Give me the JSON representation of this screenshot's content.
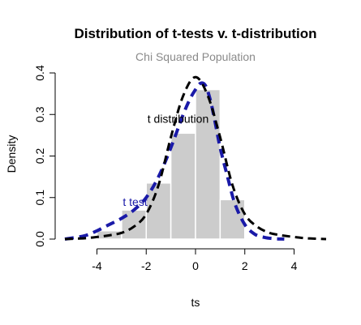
{
  "chart_data": {
    "type": "histogram",
    "title": "Distribution of t-tests v. t-distribution",
    "subtitle": "Chi Squared Population",
    "xlabel": "ts",
    "ylabel": "Density",
    "xlim": [
      -5.3,
      5.3
    ],
    "ylim": [
      0,
      0.4
    ],
    "x_ticks": [
      -4,
      -2,
      0,
      2,
      4
    ],
    "y_ticks": [
      0.0,
      0.1,
      0.2,
      0.3,
      0.4
    ],
    "y_tick_labels": [
      "0.0",
      "0.1",
      "0.2",
      "0.3",
      "0.4"
    ],
    "bars": [
      {
        "x0": -5,
        "x1": -4,
        "value": 0.003
      },
      {
        "x0": -4,
        "x1": -3,
        "value": 0.02
      },
      {
        "x0": -3,
        "x1": -2,
        "value": 0.07
      },
      {
        "x0": -2,
        "x1": -1,
        "value": 0.135
      },
      {
        "x0": -1,
        "x1": 0,
        "value": 0.255
      },
      {
        "x0": 0,
        "x1": 1,
        "value": 0.36
      },
      {
        "x0": 1,
        "x1": 2,
        "value": 0.095
      },
      {
        "x0": 2,
        "x1": 3,
        "value": 0.003
      }
    ],
    "bar_color": "#cccccc",
    "series": [
      {
        "name": "t test",
        "style": "dashed",
        "color": "#1a1aa8",
        "x": [
          -5.3,
          -4.5,
          -4.0,
          -3.5,
          -3.0,
          -2.5,
          -2.0,
          -1.5,
          -1.0,
          -0.5,
          -0.2,
          0.0,
          0.2,
          0.4,
          0.6,
          0.8,
          1.0,
          1.3,
          1.6,
          2.0,
          2.4,
          2.8,
          3.2,
          3.6
        ],
        "y": [
          0.0,
          0.008,
          0.02,
          0.035,
          0.05,
          0.07,
          0.1,
          0.15,
          0.22,
          0.3,
          0.34,
          0.36,
          0.375,
          0.37,
          0.335,
          0.28,
          0.22,
          0.15,
          0.085,
          0.035,
          0.012,
          0.004,
          0.001,
          0.0
        ]
      },
      {
        "name": "t distribution",
        "style": "dashed",
        "color": "#000000",
        "x": [
          -5.3,
          -4.5,
          -4.0,
          -3.5,
          -3.0,
          -2.5,
          -2.0,
          -1.5,
          -1.0,
          -0.5,
          0.0,
          0.5,
          1.0,
          1.5,
          2.0,
          2.5,
          3.0,
          3.5,
          4.0,
          4.5,
          5.3
        ],
        "y": [
          0.0,
          0.002,
          0.005,
          0.009,
          0.015,
          0.03,
          0.06,
          0.13,
          0.245,
          0.345,
          0.39,
          0.345,
          0.245,
          0.13,
          0.06,
          0.03,
          0.015,
          0.009,
          0.005,
          0.002,
          0.0
        ]
      }
    ],
    "annotations": [
      {
        "text": "t distribution",
        "x": -1.95,
        "y": 0.29,
        "color": "#000000"
      },
      {
        "text": "t test",
        "x": -2.95,
        "y": 0.09,
        "color": "#1a1aa8"
      }
    ]
  }
}
